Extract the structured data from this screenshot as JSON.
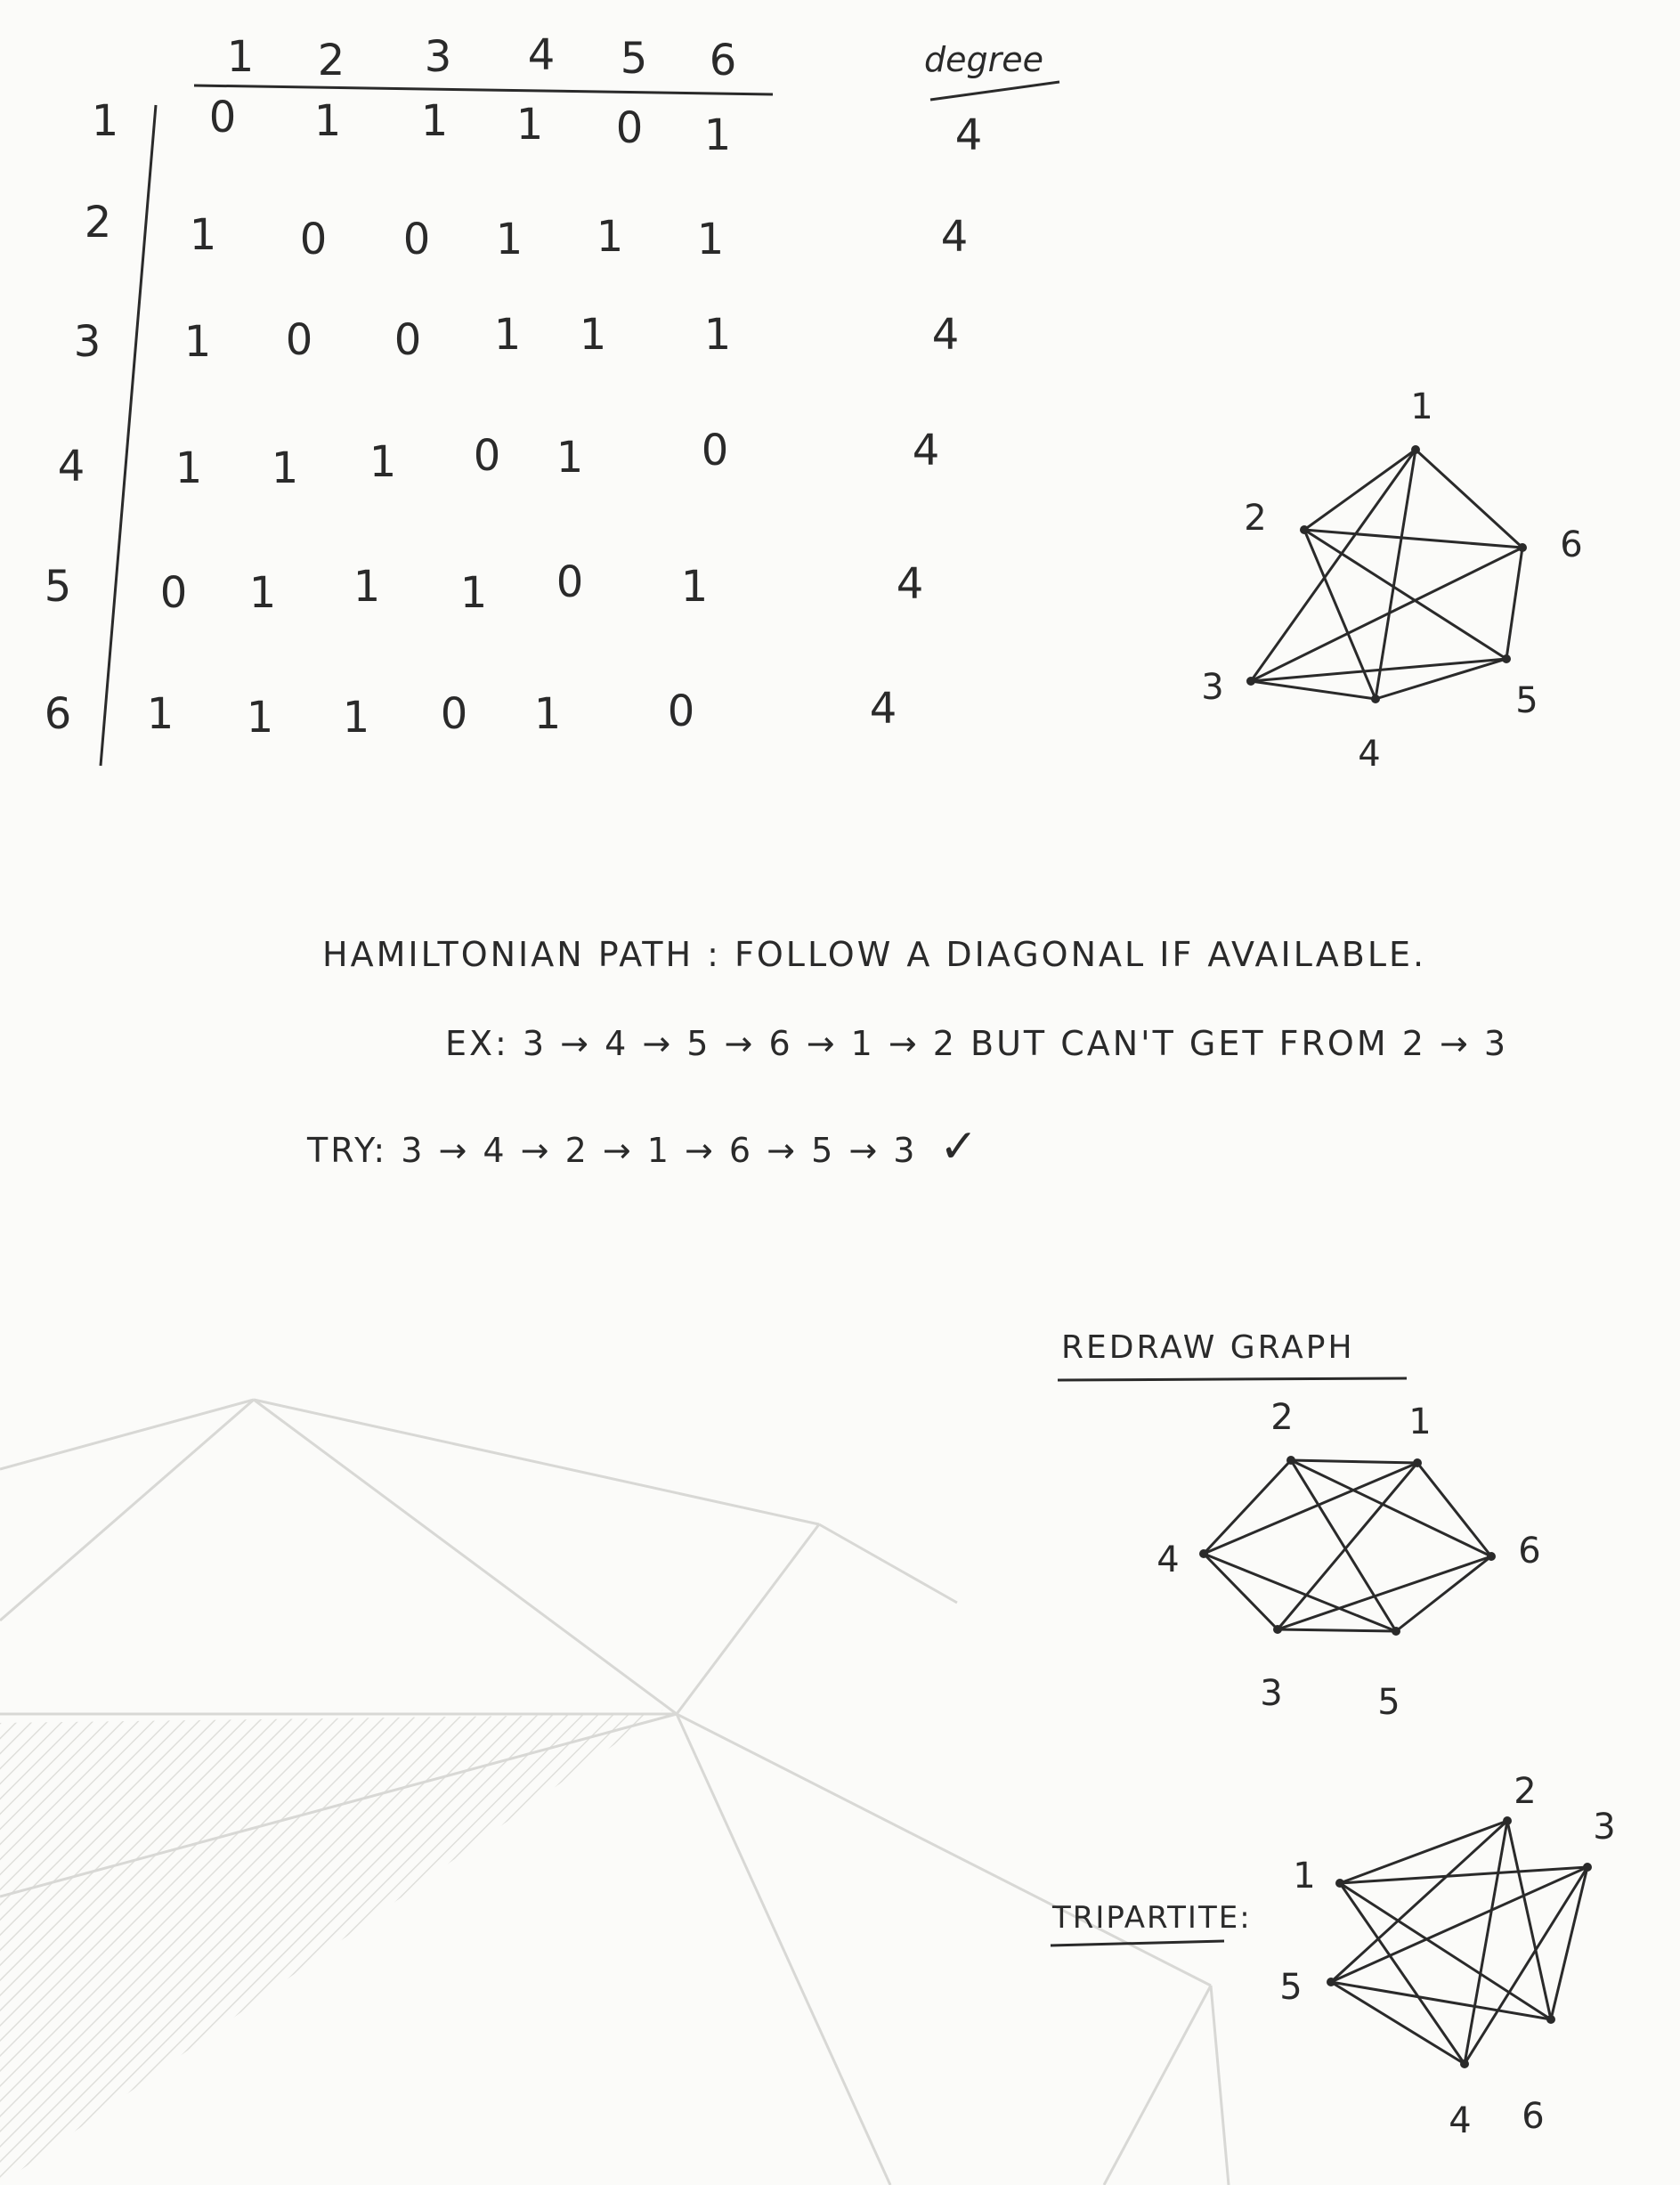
{
  "matrix": {
    "column_headers": [
      "1",
      "2",
      "3",
      "4",
      "5",
      "6"
    ],
    "degree_header": "degree",
    "rows": [
      {
        "label": "1",
        "cells": [
          "0",
          "1",
          "1",
          "1",
          "0",
          "1"
        ],
        "degree": "4"
      },
      {
        "label": "2",
        "cells": [
          "1",
          "0",
          "0",
          "1",
          "1",
          "1"
        ],
        "degree": "4"
      },
      {
        "label": "3",
        "cells": [
          "1",
          "0",
          "0",
          "1",
          "1",
          "1"
        ],
        "degree": "4"
      },
      {
        "label": "4",
        "cells": [
          "1",
          "1",
          "1",
          "0",
          "1",
          "0"
        ],
        "degree": "4"
      },
      {
        "label": "5",
        "cells": [
          "0",
          "1",
          "1",
          "1",
          "0",
          "1"
        ],
        "degree": "4"
      },
      {
        "label": "6",
        "cells": [
          "1",
          "1",
          "1",
          "0",
          "1",
          "0"
        ],
        "degree": "4"
      }
    ]
  },
  "graph1": {
    "vertices": [
      "1",
      "2",
      "6",
      "3",
      "5",
      "4"
    ]
  },
  "notes": {
    "line1": "HAMILTONIAN PATH : FOLLOW A DIAGONAL IF AVAILABLE.",
    "line2": "EX:  3 → 4 → 5 → 6 → 1 → 2    BUT CAN'T GET FROM 2 → 3",
    "line3": "TRY:  3 → 4 → 2 → 1 → 6 → 5 → 3",
    "check": "✓"
  },
  "redraw": {
    "title": "REDRAW GRAPH",
    "vertices": [
      "2",
      "1",
      "4",
      "6",
      "3",
      "5"
    ]
  },
  "tripartite": {
    "title": "TRIPARTITE:",
    "vertices": [
      "2",
      "3",
      "1",
      "5",
      "4",
      "6"
    ]
  }
}
